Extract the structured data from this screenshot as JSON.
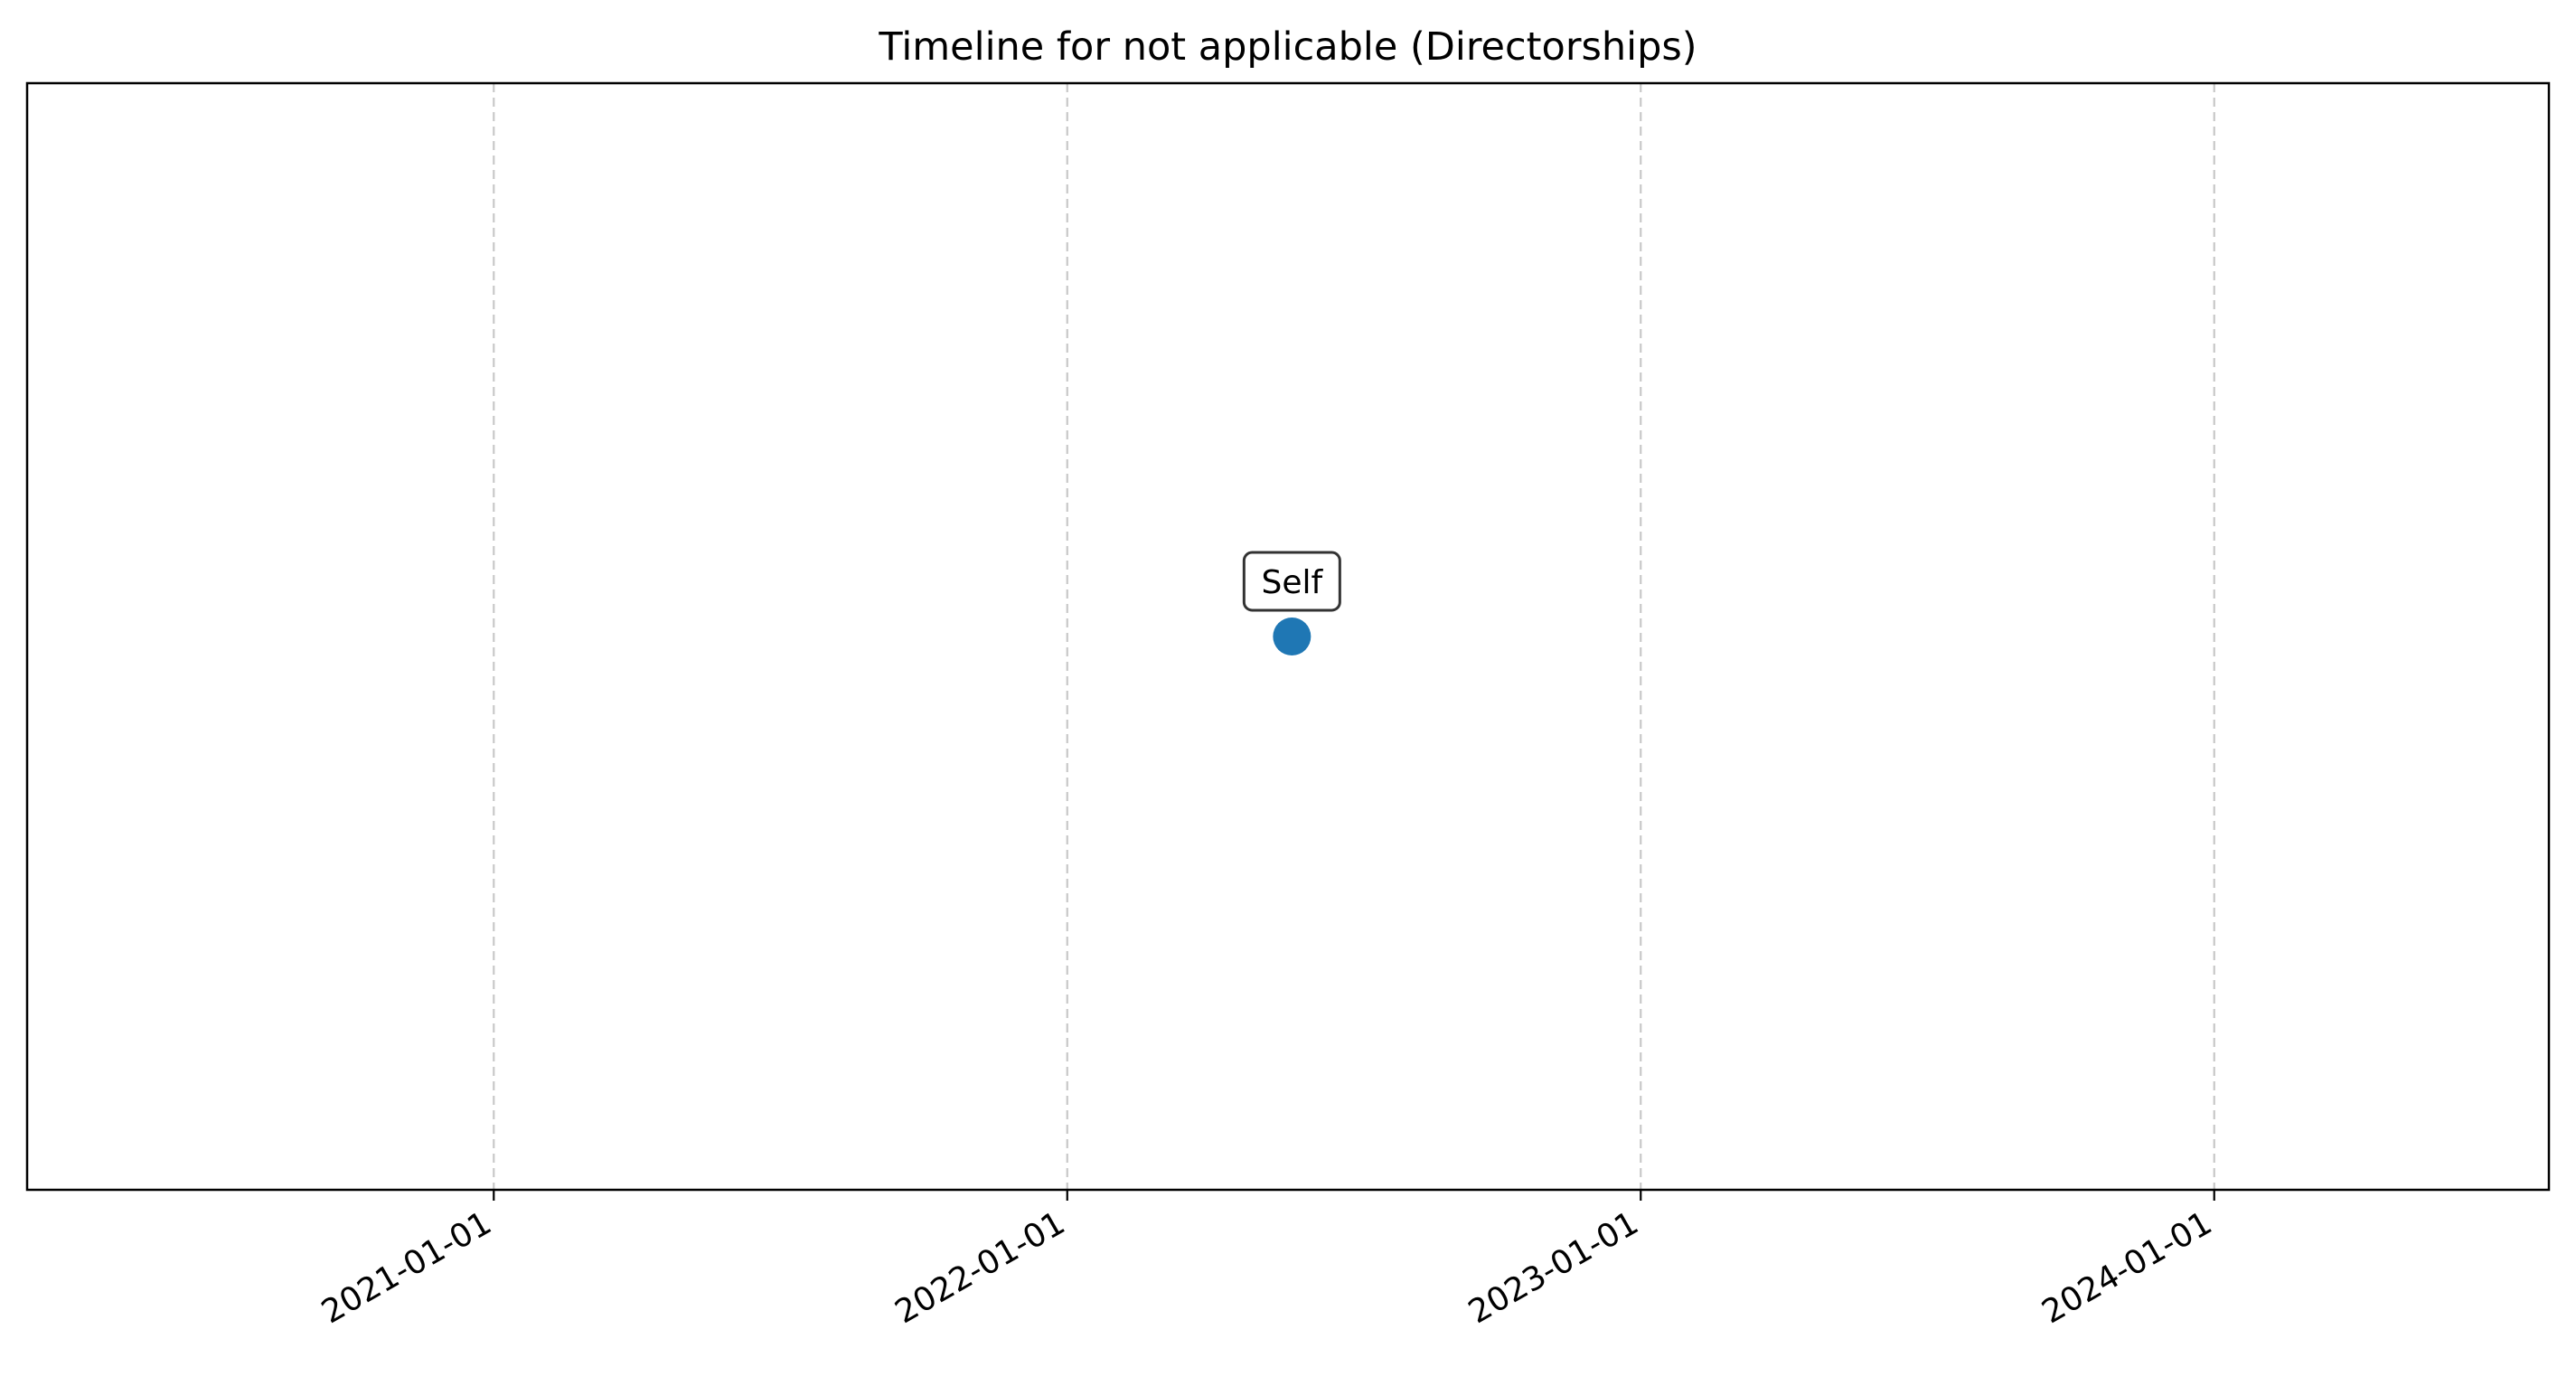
{
  "chart_data": {
    "type": "scatter",
    "title": "Timeline for not applicable (Directorships)",
    "xlabel": "",
    "ylabel": "",
    "x_axis": "date",
    "xlim": [
      "2020-03-10",
      "2024-08-01"
    ],
    "ylim": [
      -1,
      1
    ],
    "x_ticks": [
      "2021-01-01",
      "2022-01-01",
      "2023-01-01",
      "2024-01-01"
    ],
    "y_ticks_visible": false,
    "grid": {
      "x": true,
      "y": false,
      "style": "dashed"
    },
    "legend": "none",
    "series": [
      {
        "color": "#1f77b4",
        "points": [
          {
            "x": "2022-05-24",
            "y": 0,
            "label": "Self"
          }
        ]
      }
    ]
  },
  "colors": {
    "point": "#1f77b4",
    "grid": "#c8c8c8",
    "axis": "#000000",
    "label_box_border": "#333333"
  }
}
